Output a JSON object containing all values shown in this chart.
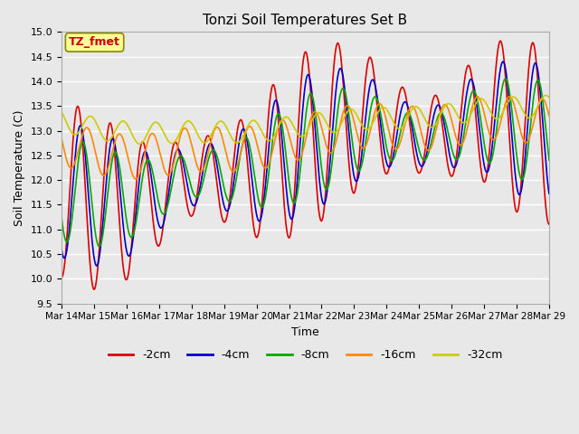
{
  "title": "Tonzi Soil Temperatures Set B",
  "xlabel": "Time",
  "ylabel": "Soil Temperature (C)",
  "ylim": [
    9.5,
    15.0
  ],
  "yticks": [
    9.5,
    10.0,
    10.5,
    11.0,
    11.5,
    12.0,
    12.5,
    13.0,
    13.5,
    14.0,
    14.5,
    15.0
  ],
  "x_labels": [
    "Mar 14",
    "Mar 15",
    "Mar 16",
    "Mar 17",
    "Mar 18",
    "Mar 19",
    "Mar 20",
    "Mar 21",
    "Mar 22",
    "Mar 23",
    "Mar 24",
    "Mar 25",
    "Mar 26",
    "Mar 27",
    "Mar 28",
    "Mar 29"
  ],
  "legend_labels": [
    "-2cm",
    "-4cm",
    "-8cm",
    "-16cm",
    "-32cm"
  ],
  "line_colors": [
    "#dd0000",
    "#0000cc",
    "#00aa00",
    "#ff8800",
    "#cccc00"
  ],
  "line_widths": [
    1.2,
    1.2,
    1.2,
    1.2,
    1.2
  ],
  "fig_bg_color": "#e8e8e8",
  "plot_bg_color": "#e8e8e8",
  "annotation_text": "TZ_fmet",
  "annotation_bg": "#ffff99",
  "annotation_fg": "#cc0000",
  "n_days": 15
}
